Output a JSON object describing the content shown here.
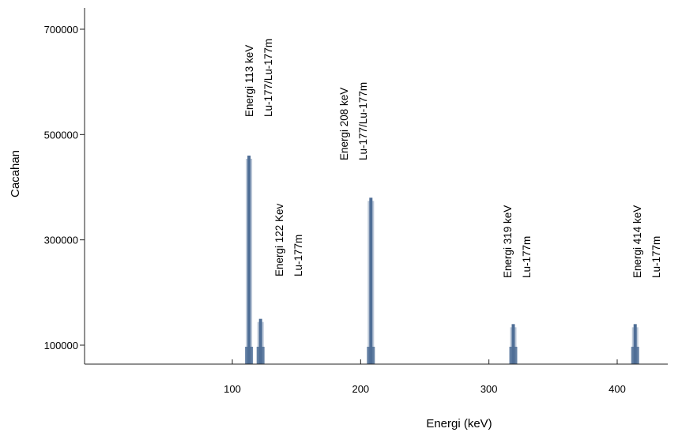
{
  "chart_data": {
    "type": "bar",
    "title": "",
    "xlabel": "Energi (keV)",
    "ylabel": "Cacahan",
    "xlim": [
      0,
      440
    ],
    "ylim": [
      78000,
      730000
    ],
    "x_ticks": [
      100,
      200,
      300,
      400
    ],
    "y_ticks": [
      100000,
      300000,
      500000,
      700000
    ],
    "grid": false,
    "bar_color": "#4f6e96",
    "bar_color_light": "#9fb1c7",
    "peaks": [
      {
        "energy": 113,
        "counts": 460000
      },
      {
        "energy": 122,
        "counts": 150000
      },
      {
        "energy": 208,
        "counts": 380000
      },
      {
        "energy": 319,
        "counts": 140000
      },
      {
        "energy": 414,
        "counts": 140000
      }
    ],
    "annotations": [
      {
        "energy": 113,
        "lines": [
          "Energi 113 keV",
          "Lu-177/Lu-177m"
        ]
      },
      {
        "energy": 122,
        "lines": [
          "Energi 122 Kev",
          "Lu-177m"
        ]
      },
      {
        "energy": 208,
        "lines": [
          "Energi 208 keV",
          "Lu-177/Lu-177m"
        ]
      },
      {
        "energy": 319,
        "lines": [
          "Energi 319 keV",
          "Lu-177m"
        ]
      },
      {
        "energy": 414,
        "lines": [
          "Energi 414 keV",
          "Lu-177m"
        ]
      }
    ]
  }
}
